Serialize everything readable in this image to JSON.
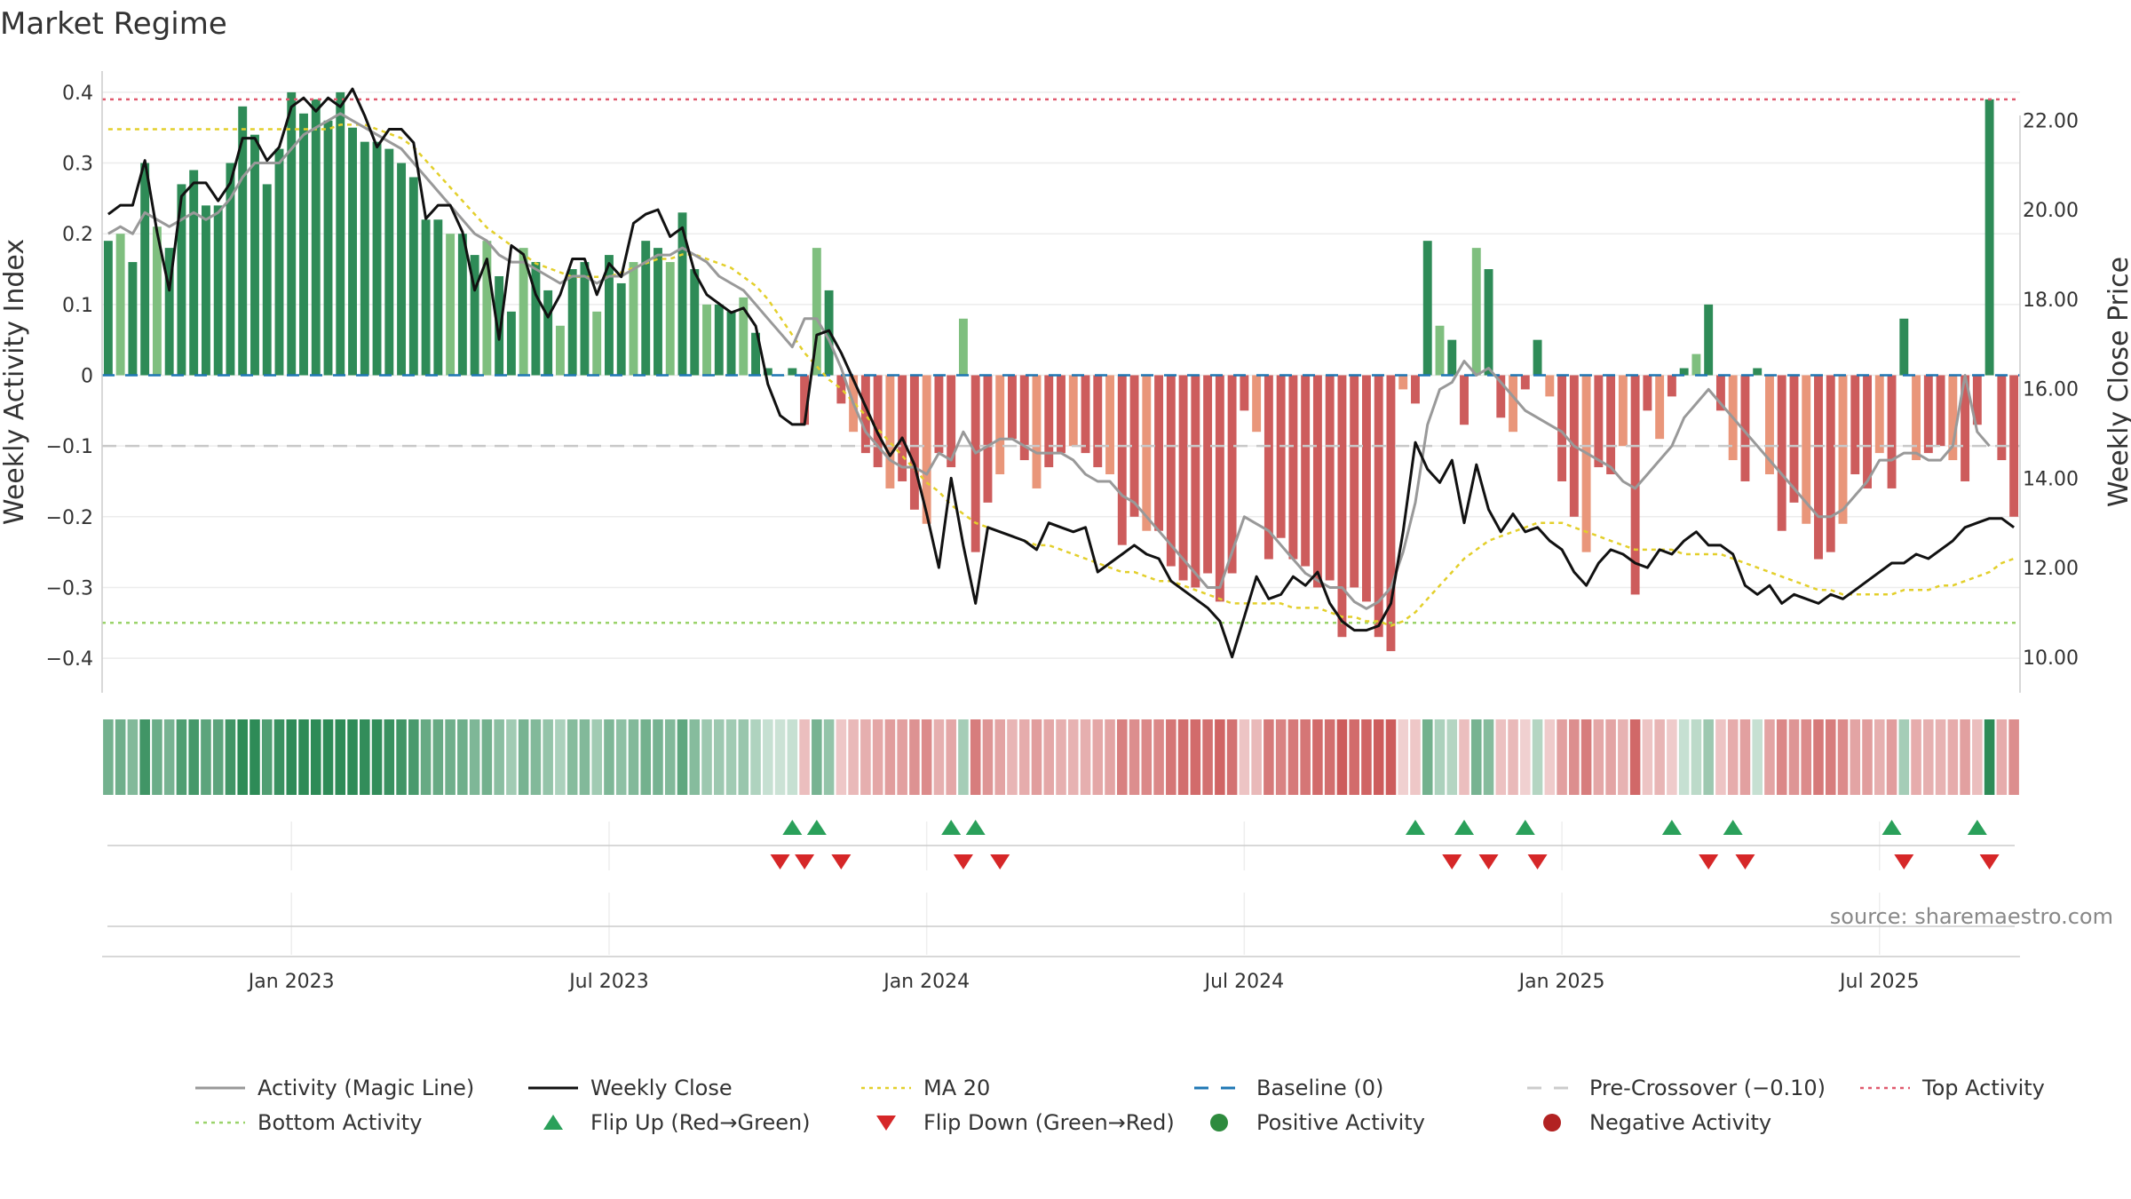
{
  "chart_data": {
    "type": "bar",
    "title": "Market Regime",
    "ylabel_left": "Weekly Activity Index",
    "ylabel_right": "Weekly Close Price",
    "xlabel": "",
    "source": "source: sharemaestro.com",
    "ylim_left": [
      -0.43,
      0.43
    ],
    "ylim_right": [
      9.5,
      23.1
    ],
    "left_ticks": [
      {
        "v": 0.4,
        "label": "0.4"
      },
      {
        "v": 0.3,
        "label": "0.3"
      },
      {
        "v": 0.2,
        "label": "0.2"
      },
      {
        "v": 0.1,
        "label": "0.1"
      },
      {
        "v": 0,
        "label": "0"
      },
      {
        "v": -0.1,
        "label": "−0.1"
      },
      {
        "v": -0.2,
        "label": "−0.2"
      },
      {
        "v": -0.3,
        "label": "−0.3"
      },
      {
        "v": -0.4,
        "label": "−0.4"
      }
    ],
    "right_ticks": [
      {
        "v": 22,
        "label": "22.00"
      },
      {
        "v": 20,
        "label": "20.00"
      },
      {
        "v": 18,
        "label": "18.00"
      },
      {
        "v": 16,
        "label": "16.00"
      },
      {
        "v": 14,
        "label": "14.00"
      },
      {
        "v": 12,
        "label": "12.00"
      },
      {
        "v": 10,
        "label": "10.00"
      }
    ],
    "x_ticks": [
      {
        "week": 15,
        "label": "Jan 2023"
      },
      {
        "week": 41,
        "label": "Jul 2023"
      },
      {
        "week": 67,
        "label": "Jan 2024"
      },
      {
        "week": 93,
        "label": "Jul 2024"
      },
      {
        "week": 119,
        "label": "Jan 2025"
      },
      {
        "week": 145,
        "label": "Jul 2025"
      }
    ],
    "week_count": 157,
    "reference_lines": {
      "top": 0.39,
      "bottom": -0.35,
      "baseline": 0,
      "pre_crossover": -0.1
    },
    "activity": [
      0.19,
      0.2,
      0.16,
      0.3,
      0.21,
      0.18,
      0.27,
      0.29,
      0.24,
      0.24,
      0.3,
      0.38,
      0.34,
      0.27,
      0.32,
      0.4,
      0.37,
      0.39,
      0.36,
      0.4,
      0.35,
      0.33,
      0.33,
      0.32,
      0.3,
      0.28,
      0.22,
      0.22,
      0.2,
      0.2,
      0.17,
      0.19,
      0.14,
      0.09,
      0.18,
      0.16,
      0.12,
      0.07,
      0.15,
      0.16,
      0.09,
      0.17,
      0.13,
      0.16,
      0.19,
      0.18,
      0.16,
      0.23,
      0.15,
      0.1,
      0.1,
      0.09,
      0.11,
      0.06,
      0.01,
      0.0,
      0.01,
      -0.07,
      0.18,
      0.12,
      -0.04,
      -0.08,
      -0.11,
      -0.13,
      -0.16,
      -0.15,
      -0.19,
      -0.21,
      -0.11,
      -0.13,
      0.08,
      -0.25,
      -0.18,
      -0.14,
      -0.09,
      -0.12,
      -0.16,
      -0.13,
      -0.11,
      -0.1,
      -0.11,
      -0.13,
      -0.14,
      -0.24,
      -0.2,
      -0.22,
      -0.22,
      -0.27,
      -0.29,
      -0.3,
      -0.28,
      -0.32,
      -0.28,
      -0.05,
      -0.08,
      -0.26,
      -0.23,
      -0.26,
      -0.27,
      -0.3,
      -0.29,
      -0.37,
      -0.3,
      -0.32,
      -0.37,
      -0.39,
      -0.02,
      -0.04,
      0.19,
      0.07,
      0.05,
      -0.07,
      0.18,
      0.15,
      -0.06,
      -0.08,
      -0.02,
      0.05,
      -0.03,
      -0.15,
      -0.2,
      -0.25,
      -0.13,
      -0.14,
      -0.1,
      -0.31,
      -0.05,
      -0.09,
      -0.03,
      0.01,
      0.03,
      0.1,
      -0.05,
      -0.12,
      -0.15,
      0.01,
      -0.14,
      -0.22,
      -0.18,
      -0.21,
      -0.26,
      -0.25,
      -0.21,
      -0.14,
      -0.16,
      -0.11,
      -0.16,
      0.08,
      -0.12,
      -0.11,
      -0.1,
      -0.12,
      -0.15,
      -0.07,
      0.39,
      -0.12,
      -0.2
    ],
    "magic_line": [
      0.2,
      0.21,
      0.2,
      0.23,
      0.22,
      0.21,
      0.22,
      0.23,
      0.22,
      0.23,
      0.25,
      0.28,
      0.3,
      0.3,
      0.3,
      0.32,
      0.34,
      0.35,
      0.36,
      0.37,
      0.36,
      0.35,
      0.34,
      0.33,
      0.32,
      0.3,
      0.28,
      0.26,
      0.24,
      0.22,
      0.2,
      0.19,
      0.17,
      0.16,
      0.16,
      0.15,
      0.14,
      0.13,
      0.14,
      0.14,
      0.13,
      0.14,
      0.14,
      0.15,
      0.16,
      0.17,
      0.17,
      0.18,
      0.17,
      0.16,
      0.14,
      0.13,
      0.12,
      0.1,
      0.08,
      0.06,
      0.04,
      0.08,
      0.08,
      0.05,
      0.01,
      -0.04,
      -0.08,
      -0.1,
      -0.12,
      -0.13,
      -0.13,
      -0.14,
      -0.11,
      -0.12,
      -0.08,
      -0.11,
      -0.1,
      -0.09,
      -0.09,
      -0.1,
      -0.11,
      -0.11,
      -0.11,
      -0.12,
      -0.14,
      -0.15,
      -0.15,
      -0.17,
      -0.18,
      -0.2,
      -0.22,
      -0.24,
      -0.26,
      -0.28,
      -0.3,
      -0.3,
      -0.25,
      -0.2,
      -0.21,
      -0.22,
      -0.24,
      -0.26,
      -0.28,
      -0.29,
      -0.3,
      -0.3,
      -0.32,
      -0.33,
      -0.32,
      -0.3,
      -0.25,
      -0.18,
      -0.07,
      -0.02,
      -0.01,
      0.02,
      0.0,
      0.01,
      -0.01,
      -0.03,
      -0.05,
      -0.06,
      -0.07,
      -0.08,
      -0.1,
      -0.11,
      -0.12,
      -0.13,
      -0.15,
      -0.16,
      -0.14,
      -0.12,
      -0.1,
      -0.06,
      -0.04,
      -0.02,
      -0.04,
      -0.06,
      -0.08,
      -0.1,
      -0.12,
      -0.14,
      -0.16,
      -0.18,
      -0.2,
      -0.2,
      -0.19,
      -0.17,
      -0.15,
      -0.12,
      -0.12,
      -0.11,
      -0.11,
      -0.12,
      -0.12,
      -0.1,
      0.0,
      -0.08,
      -0.1
    ],
    "weekly_close": [
      19.9,
      20.1,
      20.1,
      21.1,
      19.5,
      18.2,
      20.3,
      20.6,
      20.6,
      20.2,
      20.6,
      21.6,
      21.6,
      21.1,
      21.4,
      22.3,
      22.5,
      22.2,
      22.5,
      22.3,
      22.7,
      22.1,
      21.4,
      21.8,
      21.8,
      21.5,
      19.8,
      20.1,
      20.1,
      19.5,
      18.2,
      18.9,
      17.1,
      19.2,
      19.0,
      18.1,
      17.6,
      18.1,
      18.9,
      18.9,
      18.1,
      18.8,
      18.5,
      19.7,
      19.9,
      20.0,
      19.4,
      19.6,
      18.6,
      18.1,
      17.9,
      17.7,
      17.8,
      17.4,
      16.1,
      15.4,
      15.2,
      15.2,
      17.2,
      17.3,
      16.8,
      16.2,
      15.6,
      15.0,
      14.5,
      14.9,
      14.3,
      13.2,
      12.0,
      14.0,
      12.5,
      11.2,
      12.9,
      12.8,
      12.7,
      12.6,
      12.4,
      13.0,
      12.9,
      12.8,
      12.9,
      11.9,
      12.1,
      12.3,
      12.5,
      12.3,
      12.2,
      11.7,
      11.5,
      11.3,
      11.1,
      10.8,
      10.0,
      10.9,
      11.8,
      11.3,
      11.4,
      11.8,
      11.6,
      11.9,
      11.2,
      10.8,
      10.6,
      10.6,
      10.7,
      11.2,
      12.8,
      14.8,
      14.2,
      13.9,
      14.4,
      13.0,
      14.3,
      13.3,
      12.8,
      13.2,
      12.8,
      12.9,
      12.6,
      12.4,
      11.9,
      11.6,
      12.1,
      12.4,
      12.3,
      12.1,
      12.0,
      12.4,
      12.3,
      12.6,
      12.8,
      12.5,
      12.5,
      12.3,
      11.6,
      11.4,
      11.6,
      11.2,
      11.4,
      11.3,
      11.2,
      11.4,
      11.3,
      11.5,
      11.7,
      11.9,
      12.1,
      12.1,
      12.3,
      12.2,
      12.4,
      12.6,
      12.9,
      13.0,
      13.1,
      13.1,
      12.9
    ],
    "ma20": [
      21.8,
      21.8,
      21.8,
      21.8,
      21.8,
      21.8,
      21.8,
      21.8,
      21.8,
      21.8,
      21.8,
      21.8,
      21.8,
      21.8,
      21.8,
      21.8,
      21.8,
      21.8,
      21.8,
      21.9,
      21.9,
      21.9,
      21.8,
      21.7,
      21.6,
      21.4,
      21.1,
      20.8,
      20.5,
      20.2,
      19.9,
      19.6,
      19.4,
      19.2,
      19.0,
      18.8,
      18.7,
      18.6,
      18.5,
      18.5,
      18.5,
      18.5,
      18.6,
      18.7,
      18.8,
      18.9,
      18.9,
      19.0,
      19.0,
      18.9,
      18.8,
      18.7,
      18.5,
      18.3,
      18.0,
      17.6,
      17.2,
      16.8,
      16.5,
      16.2,
      16.0,
      15.7,
      15.4,
      15.1,
      14.8,
      14.5,
      14.2,
      13.9,
      13.7,
      13.4,
      13.2,
      13.0,
      12.9,
      12.8,
      12.7,
      12.6,
      12.5,
      12.5,
      12.4,
      12.3,
      12.2,
      12.1,
      12.0,
      11.9,
      11.9,
      11.8,
      11.7,
      11.7,
      11.6,
      11.5,
      11.4,
      11.3,
      11.2,
      11.2,
      11.2,
      11.2,
      11.2,
      11.1,
      11.1,
      11.1,
      11.0,
      10.9,
      10.9,
      10.8,
      10.8,
      10.7,
      10.8,
      11.0,
      11.3,
      11.6,
      11.9,
      12.2,
      12.4,
      12.6,
      12.7,
      12.8,
      12.9,
      13.0,
      13.0,
      13.0,
      12.9,
      12.8,
      12.7,
      12.6,
      12.5,
      12.4,
      12.4,
      12.4,
      12.4,
      12.3,
      12.3,
      12.3,
      12.3,
      12.2,
      12.1,
      12.0,
      11.9,
      11.8,
      11.7,
      11.6,
      11.5,
      11.5,
      11.4,
      11.4,
      11.4,
      11.4,
      11.4,
      11.5,
      11.5,
      11.5,
      11.6,
      11.6,
      11.7,
      11.8,
      11.9,
      12.1,
      12.2
    ],
    "flip_up": [
      56,
      58,
      69,
      71,
      107,
      111,
      116,
      128,
      133,
      146,
      153
    ],
    "flip_down": [
      55,
      57,
      60,
      70,
      73,
      110,
      113,
      117,
      131,
      134,
      147,
      154
    ],
    "legend": [
      {
        "label": "Activity (Magic Line)",
        "kind": "line",
        "color": "#999999"
      },
      {
        "label": "Weekly Close",
        "kind": "line",
        "color": "#111111"
      },
      {
        "label": "MA 20",
        "kind": "dotted",
        "color": "#e3cf2b"
      },
      {
        "label": "Baseline (0)",
        "kind": "dashed",
        "color": "#1f77b4"
      },
      {
        "label": "Pre-Crossover (−0.10)",
        "kind": "dashed",
        "color": "#cccccc"
      },
      {
        "label": "Top Activity",
        "kind": "dotted",
        "color": "#e05a6e"
      },
      {
        "label": "Bottom Activity",
        "kind": "dotted",
        "color": "#9ad36a"
      },
      {
        "label": "Flip Up (Red→Green)",
        "kind": "tri-up",
        "color": "#2aa05a"
      },
      {
        "label": "Flip Down (Green→Red)",
        "kind": "tri-down",
        "color": "#d62728"
      },
      {
        "label": "Positive Activity",
        "kind": "dot",
        "color": "#2e8b3e"
      },
      {
        "label": "Negative Activity",
        "kind": "dot",
        "color": "#b22222"
      }
    ],
    "colors": {
      "pos_strong": "#2e8b57",
      "pos_light": "#7fbf7f",
      "neg_strong": "#cd5c5c",
      "neg_light": "#e9967a",
      "top_line": "#e05a6e",
      "bottom_line": "#9ad36a",
      "baseline": "#1f77b4",
      "pre_cross": "#c8c8c8",
      "magic": "#999999",
      "close": "#111111",
      "ma": "#e3cf2b",
      "grid": "#ececec"
    }
  }
}
